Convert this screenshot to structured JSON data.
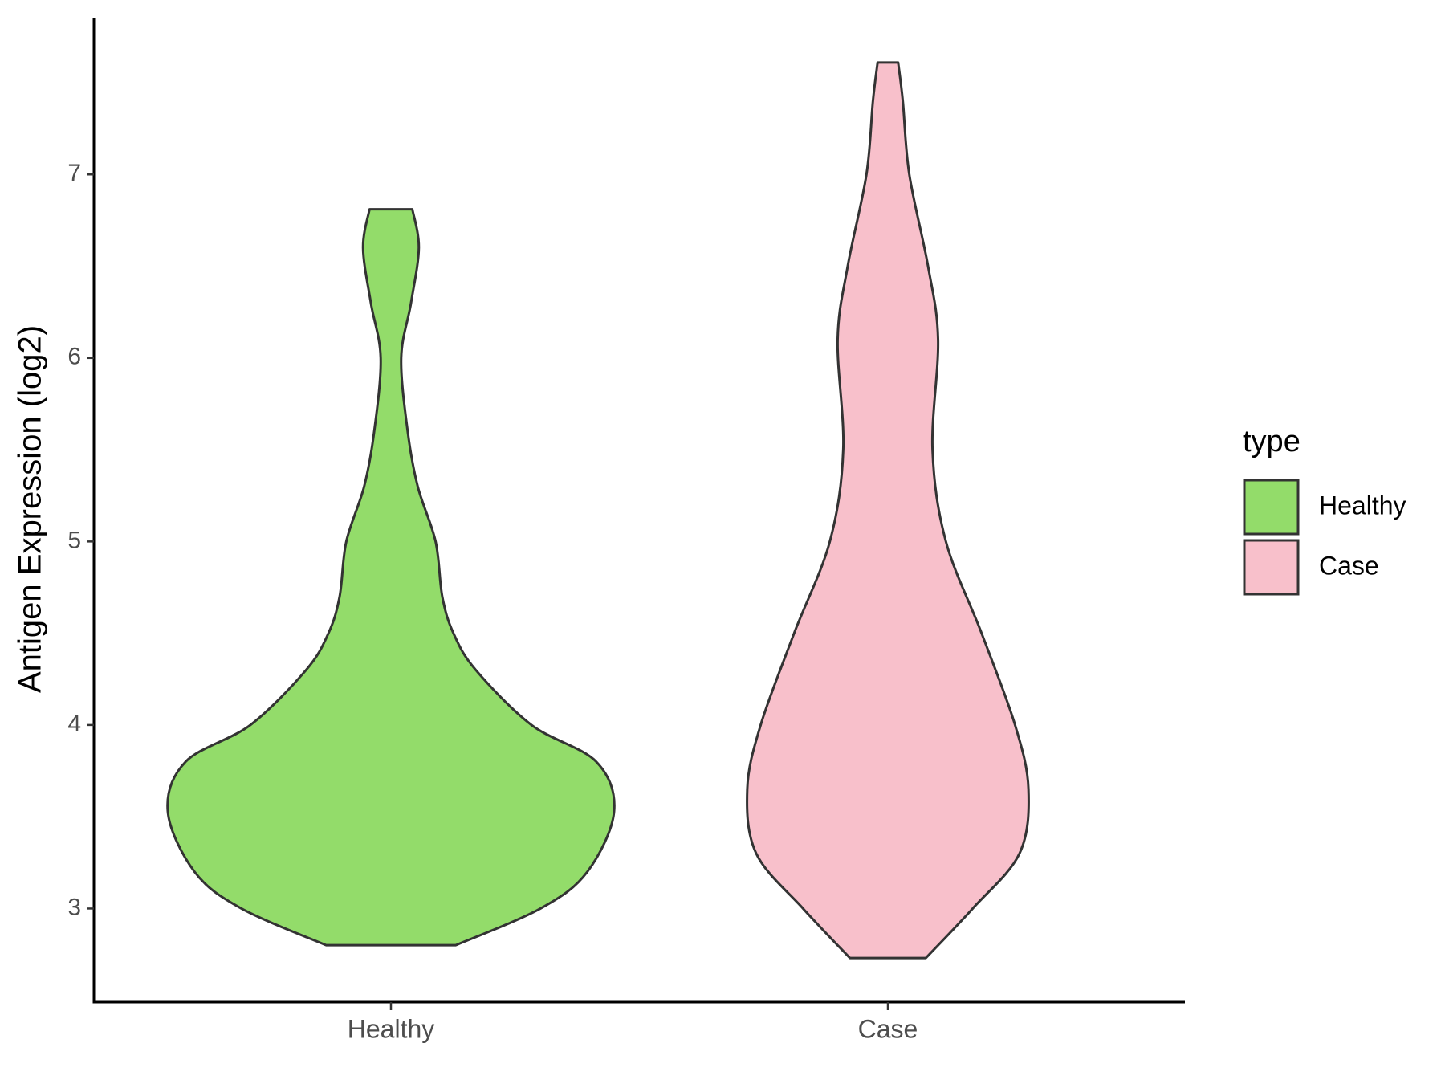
{
  "chart_data": {
    "type": "violin",
    "y_label": "Antigen Expression (log2)",
    "categories": [
      "Healthy",
      "Case"
    ],
    "legend_title": "type",
    "series": [
      {
        "name": "Healthy",
        "color": "#93dc6a",
        "y": [
          2.8,
          3.0,
          3.2,
          3.53,
          3.8,
          4.0,
          4.3,
          4.5,
          4.7,
          5.0,
          5.3,
          5.6,
          6.0,
          6.3,
          6.6,
          6.81
        ],
        "width": [
          0.29,
          0.67,
          0.88,
          1.0,
          0.92,
          0.63,
          0.38,
          0.28,
          0.23,
          0.2,
          0.12,
          0.075,
          0.046,
          0.09,
          0.125,
          0.096
        ]
      },
      {
        "name": "Case",
        "color": "#f8c0cb",
        "y": [
          2.73,
          3.0,
          3.3,
          3.65,
          4.0,
          4.5,
          5.0,
          5.5,
          6.1,
          6.5,
          7.0,
          7.4,
          7.61
        ],
        "width": [
          0.17,
          0.38,
          0.59,
          0.63,
          0.57,
          0.42,
          0.26,
          0.2,
          0.225,
          0.18,
          0.096,
          0.067,
          0.046
        ]
      }
    ],
    "ylim": [
      2.49,
      7.85
    ],
    "yticks": [
      3,
      4,
      5,
      6,
      7
    ],
    "grid": false
  }
}
